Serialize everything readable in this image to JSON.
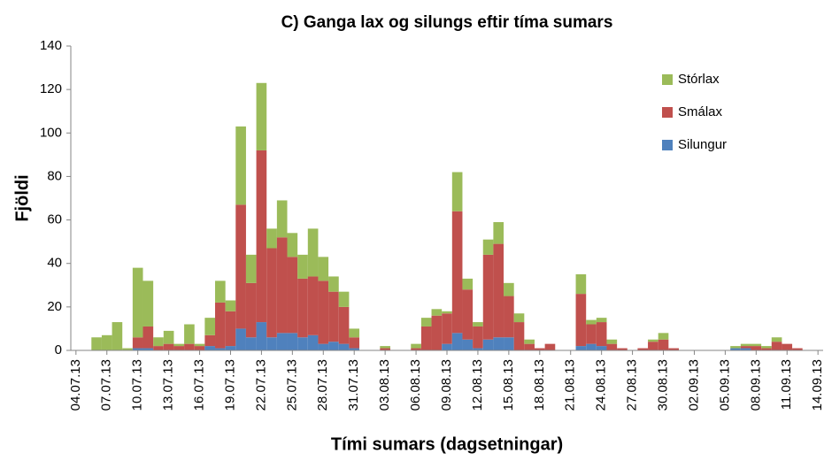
{
  "chart_data": {
    "type": "stacked_bar",
    "title": "C) Ganga lax og silungs eftir tíma sumars",
    "xlabel": "Tími sumars (dagsetningar)",
    "ylabel": "Fjöldi",
    "categories": [
      "04.07.13",
      null,
      null,
      "07.07.13",
      null,
      null,
      "10.07.13",
      null,
      null,
      "13.07.13",
      null,
      null,
      "16.07.13",
      null,
      null,
      "19.07.13",
      null,
      null,
      "22.07.13",
      null,
      null,
      "25.07.13",
      null,
      null,
      "28.07.13",
      null,
      null,
      "31.07.13",
      null,
      null,
      "03.08.13",
      null,
      null,
      "06.08.13",
      null,
      null,
      "09.08.13",
      null,
      null,
      "12.08.13",
      null,
      null,
      "15.08.13",
      null,
      null,
      "18.08.13",
      null,
      null,
      "21.08.13",
      null,
      null,
      "24.08.13",
      null,
      null,
      "27.08.13",
      null,
      null,
      "30.08.13",
      null,
      null,
      "02.09.13",
      null,
      null,
      "05.09.13",
      null,
      null,
      "08.09.13",
      null,
      null,
      "11.09.13",
      null,
      null,
      "14.09.13"
    ],
    "series": [
      {
        "name": "Silungur",
        "color": "#4f81bd",
        "values": [
          0,
          0,
          0,
          0,
          0,
          0,
          1,
          1,
          0,
          0,
          0,
          0,
          0,
          2,
          1,
          2,
          10,
          6,
          13,
          6,
          8,
          8,
          6,
          7,
          3,
          4,
          3,
          1,
          0,
          0,
          0,
          0,
          0,
          0,
          0,
          0,
          3,
          8,
          5,
          1,
          5,
          6,
          6,
          0,
          0,
          0,
          0,
          0,
          0,
          2,
          3,
          2,
          0,
          0,
          0,
          0,
          0,
          0,
          0,
          0,
          0,
          0,
          0,
          0,
          1,
          1,
          0,
          0,
          0,
          0,
          0,
          0,
          0
        ]
      },
      {
        "name": "Smálax",
        "color": "#c0504d",
        "values": [
          0,
          0,
          0,
          0,
          0,
          0,
          5,
          10,
          2,
          3,
          2,
          3,
          2,
          5,
          21,
          16,
          57,
          25,
          79,
          41,
          44,
          35,
          27,
          27,
          29,
          23,
          17,
          5,
          0,
          0,
          1,
          0,
          0,
          1,
          11,
          16,
          14,
          56,
          23,
          10,
          39,
          43,
          19,
          13,
          3,
          1,
          3,
          0,
          0,
          24,
          9,
          11,
          3,
          1,
          0,
          1,
          4,
          5,
          1,
          0,
          0,
          0,
          0,
          0,
          0,
          1,
          2,
          1,
          4,
          3,
          1,
          0,
          0
        ]
      },
      {
        "name": "Stórlax",
        "color": "#9bbb59",
        "values": [
          0,
          0,
          6,
          7,
          13,
          1,
          32,
          21,
          4,
          6,
          1,
          9,
          1,
          8,
          10,
          5,
          36,
          13,
          31,
          9,
          17,
          11,
          11,
          22,
          11,
          7,
          7,
          4,
          0,
          0,
          1,
          0,
          0,
          2,
          4,
          3,
          1,
          18,
          5,
          2,
          7,
          10,
          6,
          4,
          2,
          0,
          0,
          0,
          0,
          9,
          2,
          2,
          2,
          0,
          0,
          0,
          1,
          3,
          0,
          0,
          0,
          0,
          0,
          0,
          1,
          1,
          1,
          1,
          2,
          0,
          0,
          0,
          0
        ]
      }
    ],
    "ylim": [
      0,
      140
    ],
    "yticks": [
      0,
      20,
      40,
      60,
      80,
      100,
      120,
      140
    ],
    "legend": "upper right"
  }
}
